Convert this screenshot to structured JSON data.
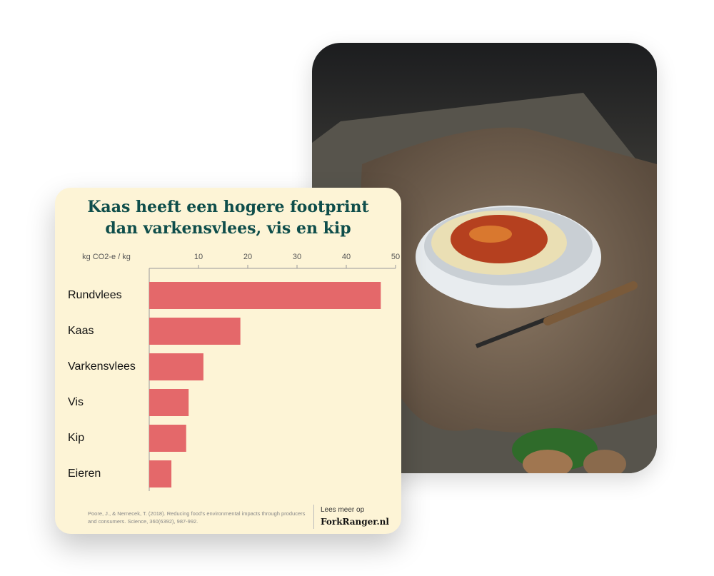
{
  "chart_data": {
    "type": "bar",
    "orientation": "horizontal",
    "title": "Kaas heeft een hogere footprint dan varkensvlees, vis en kip",
    "x_label": "kg CO2-e / kg",
    "categories": [
      "Rundvlees",
      "Kaas",
      "Varkensvlees",
      "Vis",
      "Kip",
      "Eieren"
    ],
    "values": [
      47,
      18.5,
      11,
      8,
      7.5,
      4.5
    ],
    "color": "#e4686a",
    "xlim": [
      0,
      50
    ],
    "xticks": [
      10,
      20,
      30,
      40,
      50
    ],
    "source": "Poore, J., & Nemecek, T. (2018). Reducing food's environmental impacts through producers and consumers. Science, 360(6392), 987-992.",
    "link_intro": "Lees meer op",
    "link": "ForkRanger.nl"
  }
}
